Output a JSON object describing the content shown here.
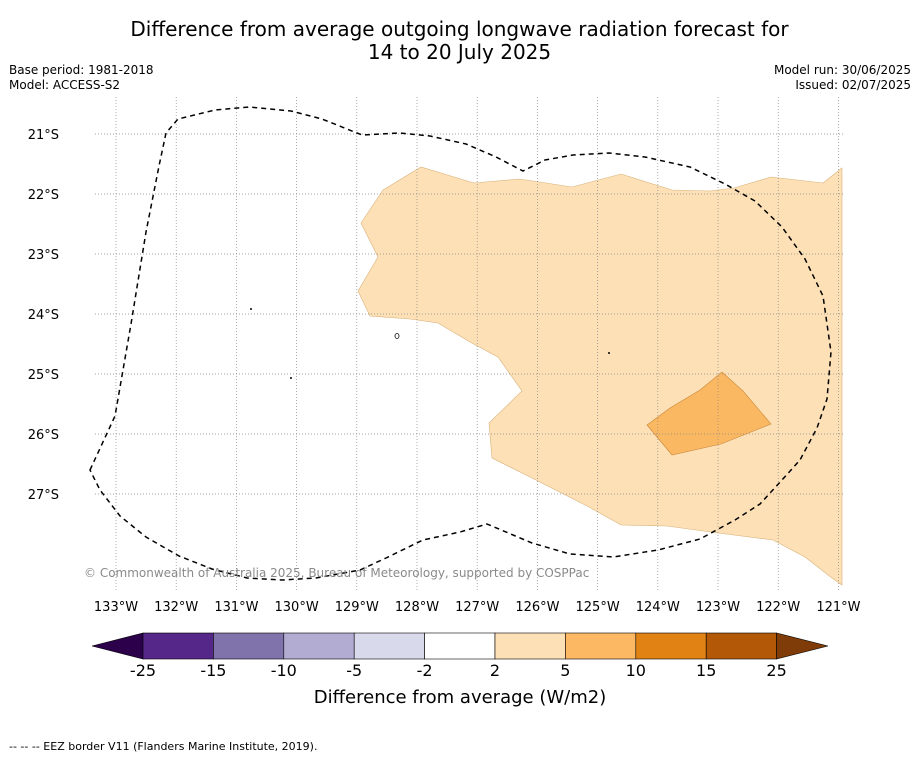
{
  "header": {
    "title_line1": "Difference from average outgoing longwave radiation forecast for",
    "title_line2": "14 to 20 July 2025",
    "base_period": "Base period: 1981-2018",
    "model": "Model: ACCESS-S2",
    "model_run": "Model run: 30/06/2025",
    "issued": "Issued: 02/07/2025"
  },
  "map": {
    "lon_labels": [
      "133°W",
      "132°W",
      "131°W",
      "130°W",
      "129°W",
      "128°W",
      "127°W",
      "126°W",
      "125°W",
      "124°W",
      "123°W",
      "122°W",
      "121°W"
    ],
    "lat_labels": [
      "21°S",
      "22°S",
      "23°S",
      "24°S",
      "25°S",
      "26°S",
      "27°S"
    ],
    "copyright": "© Commonwealth of Australia 2025, Bureau of Meteorology, supported by COSPPac",
    "fill_colors": {
      "anomaly_2_to_5": "#fde0b6",
      "anomaly_5_to_10": "#fbb863"
    }
  },
  "colorbar": {
    "label": "Difference from average (W/m2)",
    "ticks": [
      "-25",
      "-15",
      "-10",
      "-5",
      "-2",
      "2",
      "5",
      "10",
      "15",
      "25"
    ],
    "colors": [
      "#2d004b",
      "#542788",
      "#8073ac",
      "#b2abd2",
      "#d8daeb",
      "#ffffff",
      "#fee0b6",
      "#fdb863",
      "#e08214",
      "#b35806",
      "#7f3b08"
    ]
  },
  "footer": {
    "legend_text": "--  --  -- EEZ border V11 (Flanders Marine Institute, 2019)."
  }
}
